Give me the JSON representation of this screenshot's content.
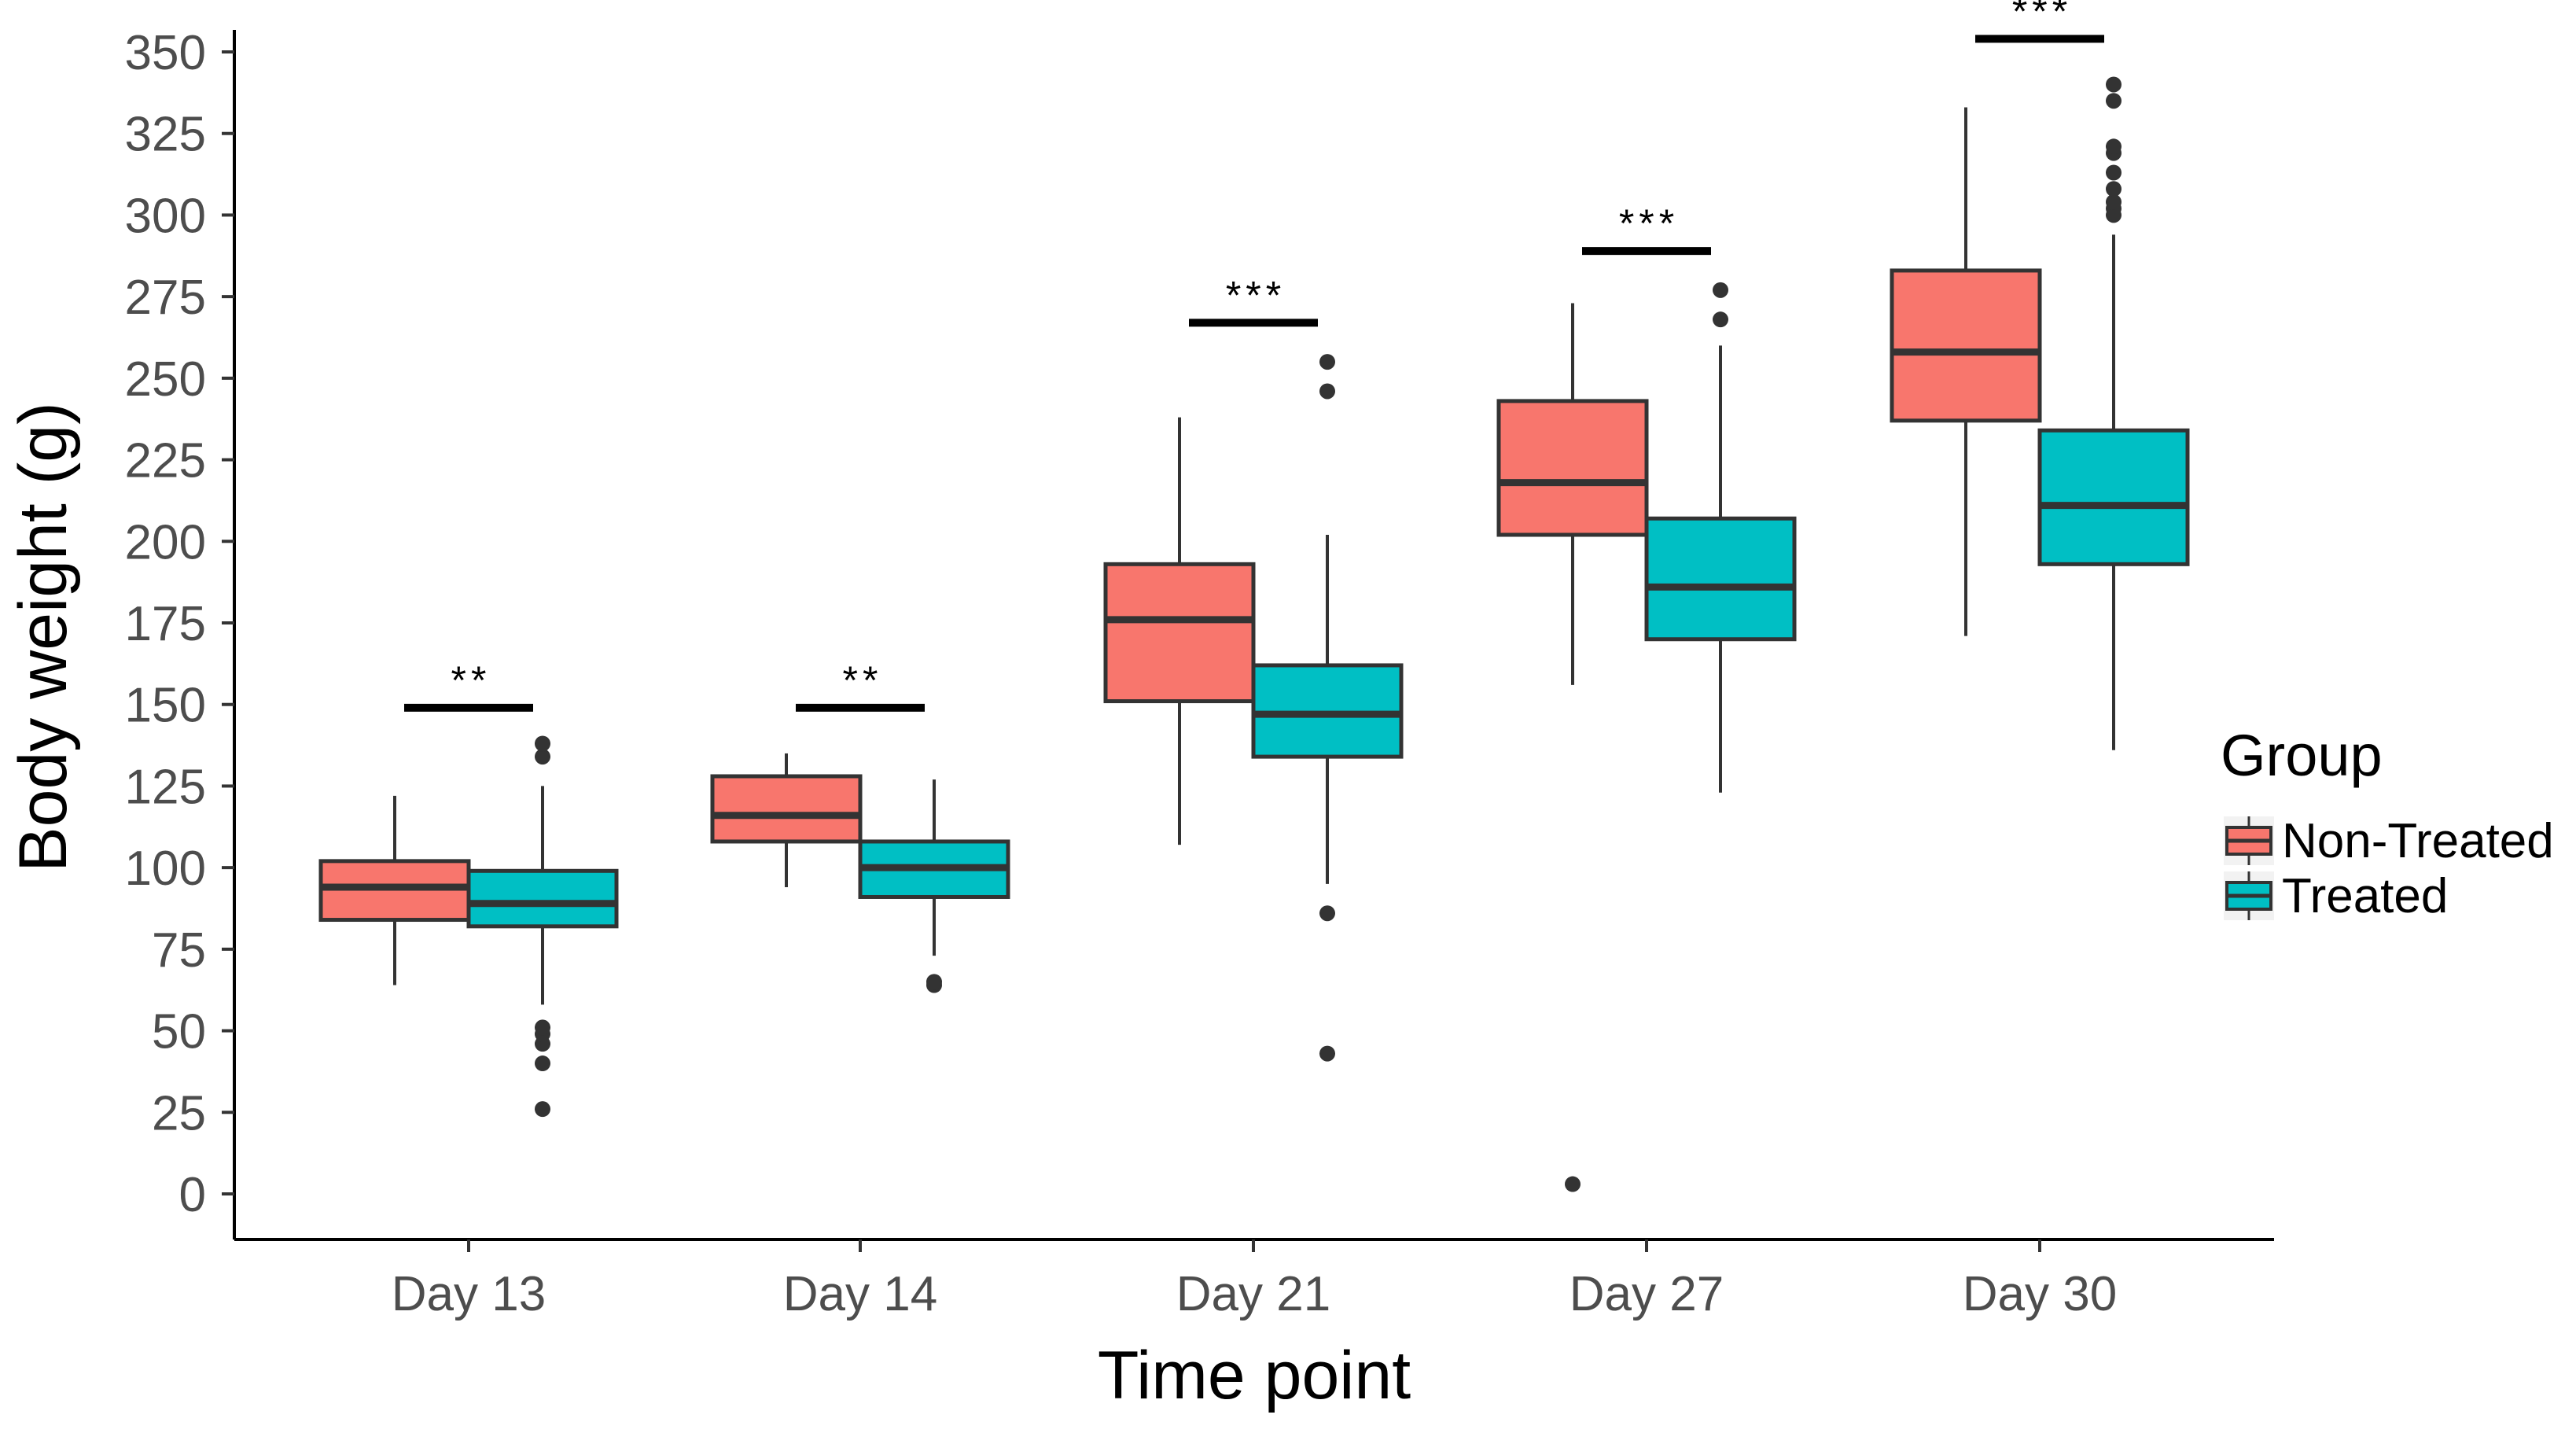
{
  "chart_data": {
    "type": "box",
    "title": "",
    "xlabel": "Time point",
    "ylabel": "Body weight (g)",
    "ylim": [
      -12,
      357
    ],
    "yticks": [
      0,
      25,
      50,
      75,
      100,
      125,
      150,
      175,
      200,
      225,
      250,
      275,
      300,
      325,
      350
    ],
    "categories": [
      "Day 13",
      "Day 14",
      "Day 21",
      "Day 27",
      "Day 30"
    ],
    "legend": {
      "title": "Group",
      "position": "right"
    },
    "series": [
      {
        "name": "Non-Treated",
        "color": "#F8766D",
        "boxes": [
          {
            "whisker_low": 64,
            "q1": 84,
            "median": 94,
            "q3": 102,
            "whisker_high": 122,
            "outliers": []
          },
          {
            "whisker_low": 94,
            "q1": 108,
            "median": 116,
            "q3": 128,
            "whisker_high": 135,
            "outliers": []
          },
          {
            "whisker_low": 107,
            "q1": 151,
            "median": 176,
            "q3": 193,
            "whisker_high": 238,
            "outliers": []
          },
          {
            "whisker_low": 156,
            "q1": 202,
            "median": 218,
            "q3": 243,
            "whisker_high": 273,
            "outliers": [
              3
            ]
          },
          {
            "whisker_low": 171,
            "q1": 237,
            "median": 258,
            "q3": 283,
            "whisker_high": 333,
            "outliers": []
          }
        ]
      },
      {
        "name": "Treated",
        "color": "#00BFC4",
        "boxes": [
          {
            "whisker_low": 58,
            "q1": 82,
            "median": 89,
            "q3": 99,
            "whisker_high": 125,
            "outliers": [
              26,
              40,
              46,
              49,
              51,
              134,
              138
            ]
          },
          {
            "whisker_low": 73,
            "q1": 91,
            "median": 100,
            "q3": 108,
            "whisker_high": 127,
            "outliers": [
              64,
              65
            ]
          },
          {
            "whisker_low": 95,
            "q1": 134,
            "median": 147,
            "q3": 162,
            "whisker_high": 202,
            "outliers": [
              43,
              86,
              246,
              255
            ]
          },
          {
            "whisker_low": 123,
            "q1": 170,
            "median": 186,
            "q3": 207,
            "whisker_high": 260,
            "outliers": [
              268,
              277
            ]
          },
          {
            "whisker_low": 136,
            "q1": 193,
            "median": 211,
            "q3": 234,
            "whisker_high": 294,
            "outliers": [
              300,
              302,
              304,
              308,
              313,
              319,
              321,
              335,
              340
            ]
          }
        ]
      }
    ],
    "significance": [
      {
        "category": "Day 13",
        "label": "**",
        "y": 149
      },
      {
        "category": "Day 14",
        "label": "**",
        "y": 149
      },
      {
        "category": "Day 21",
        "label": "***",
        "y": 267
      },
      {
        "category": "Day 27",
        "label": "***",
        "y": 289
      },
      {
        "category": "Day 30",
        "label": "***",
        "y": 354
      }
    ]
  }
}
